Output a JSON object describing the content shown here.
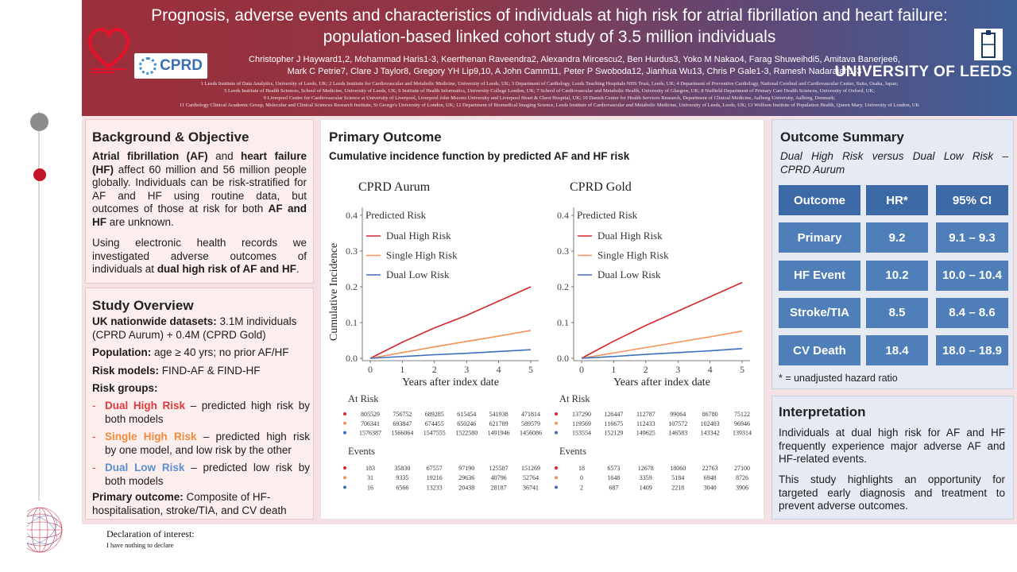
{
  "header": {
    "title_line1": "Prognosis, adverse events and characteristics of individuals at high risk for atrial fibrillation and heart failure:",
    "title_line2": "population-based linked cohort study of 3.5 million individuals",
    "authors_line1": "Christopher J Hayward1,2, Mohammad Haris1-3, Keerthenan Raveendra2, Alexandra Mircescu2, Ben Hurdus3, Yoko M Nakao4, Farag Shuweihdi5, Amitava Banerjee6,",
    "authors_line2": "Mark C Petrie7, Clare J Taylor8, Gregory YH Lip9,10, A John Camm11, Peter P Swoboda12, Jianhua Wu13, Chris P Gale1-3, Ramesh Nadarajah1-3",
    "affiliations": [
      "1 Leeds Institute of Data Analytics, University of Leeds, UK; 2 Leeds Institute for Cardiovascular and Metabolic Medicine, University of Leeds, UK; 3 Department of Cardiology, Leeds Teaching Hospitals NHS Trust, Leeds, UK; 4 Department of Preventive Cardiology, National Cerebral and Cardiovascular Center, Suita, Osaka, Japan;",
      "5 Leeds Institute of Health Sciences, School of Medicine, University of Leeds, UK; 6 Institute of Health Informatics, University College London, UK; 7 School of Cardiovascular and Metabolic Health, University of Glasgow, UK; 8 Nuffield Department of Primary Care Health Sciences, University of Oxford, UK;",
      "9 Liverpool Centre for Cardiovascular Science at University of Liverpool, Liverpool John Moores University and Liverpool Heart & Chest Hospital, UK; 10 Danish Center for Health Services Research, Department of Clinical Medicine, Aalborg University, Aalborg, Denmark;",
      "11 Cardiology Clinical Academic Group, Molecular and Clinical Sciences Research Institute, St George's University of London, UK; 12 Department of Biomedical Imaging Science, Leeds Institute of Cardiovascular and Metabolic Medicine, University of Leeds, Leeds, UK; 13 Wolfson Institute of Population Health, Queen Mary, University of London, UK"
    ],
    "cprd_logo": "CPRD",
    "university": "UNIVERSITY OF LEEDS"
  },
  "background": {
    "title": "Background & Objective",
    "p1_lines": [
      [
        {
          "t": "Atrial fibrillation (AF)",
          "b": true
        },
        {
          "t": " and "
        },
        {
          "t": "heart failure",
          "b": true
        }
      ],
      [
        {
          "t": "(HF)",
          "b": true
        },
        {
          "t": " affect 60 million and 56 million people"
        }
      ],
      [
        {
          "t": "globally. Individuals can be risk-stratified for"
        }
      ],
      [
        {
          "t": "AF and HF using routine data, but"
        }
      ],
      [
        {
          "t": "outcomes of those at risk for both "
        },
        {
          "t": "AF and",
          "b": true
        }
      ],
      [
        {
          "t": "HF",
          "b": true
        },
        {
          "t": " are unknown."
        }
      ]
    ],
    "p2_lines": [
      [
        {
          "t": "Using electronic health records we"
        }
      ],
      [
        {
          "t": "investigated adverse outcomes of"
        }
      ],
      [
        {
          "t": "individuals at "
        },
        {
          "t": "dual high risk of AF and HF",
          "b": true
        },
        {
          "t": "."
        }
      ]
    ]
  },
  "study": {
    "title": "Study Overview",
    "datasets_label": "UK nationwide datasets:",
    "datasets_text": " 3.1M individuals",
    "datasets_text2": "(CPRD Aurum) + 0.4M (CPRD Gold)",
    "population_label": "Population:",
    "population_text": " age ≥ 40 yrs; no prior AF/HF",
    "models_label": "Risk models:",
    "models_text": " FIND-AF & FIND-HF",
    "groups_label": "Risk groups:",
    "groups": [
      {
        "name": "Dual High Risk",
        "text": " – predicted high risk by",
        "text2": "both models",
        "color": "#e03a3e"
      },
      {
        "name": "Single High Risk",
        "text": " – predicted high risk",
        "text2": "by one model, and low risk by the other",
        "color": "#f08a3c"
      },
      {
        "name": "Dual Low Risk",
        "text": " – predicted low risk by",
        "text2": "both models",
        "color": "#5a8fd0"
      }
    ],
    "outcome_label": "Primary outcome:",
    "outcome_text": " Composite of HF-",
    "outcome_text2": "hospitalisation, stroke/TIA, and CV death"
  },
  "primary": {
    "title": "Primary Outcome",
    "subtitle": "Cumulative incidence function by predicted AF and HF risk"
  },
  "chart_data": [
    {
      "type": "line",
      "title": "CPRD Aurum",
      "ylabel": "Cumulative Incidence",
      "xlabel": "Years after index date",
      "xlim": [
        0,
        5
      ],
      "ylim": [
        0,
        0.4
      ],
      "xticks": [
        "0",
        "1",
        "2",
        "3",
        "4",
        "5"
      ],
      "yticks": [
        "0.0",
        "0.1",
        "0.2",
        "0.3",
        "0.4"
      ],
      "legend_title": "Predicted Risk",
      "legend_position": "top-left",
      "series": [
        {
          "name": "Dual High Risk",
          "color": "#d7262b",
          "x": [
            0,
            1,
            2,
            3,
            4,
            5
          ],
          "y": [
            0,
            0.045,
            0.085,
            0.12,
            0.16,
            0.2
          ]
        },
        {
          "name": "Single High Risk",
          "color": "#f2915a",
          "x": [
            0,
            1,
            2,
            3,
            4,
            5
          ],
          "y": [
            0,
            0.016,
            0.032,
            0.047,
            0.062,
            0.078
          ]
        },
        {
          "name": "Dual Low Risk",
          "color": "#3b6fba",
          "x": [
            0,
            1,
            2,
            3,
            4,
            5
          ],
          "y": [
            0,
            0.005,
            0.01,
            0.014,
            0.019,
            0.024
          ]
        }
      ],
      "at_risk_label": "At Risk",
      "at_risk": [
        [
          "805529",
          "756752",
          "689285",
          "615454",
          "541938",
          "471814"
        ],
        [
          "706341",
          "693847",
          "674455",
          "650246",
          "621789",
          "589579"
        ],
        [
          "1576387",
          "1566064",
          "1547555",
          "1522580",
          "1491946",
          "1456086"
        ]
      ],
      "events_label": "Events",
      "events": [
        [
          "183",
          "35830",
          "67557",
          "97190",
          "125587",
          "151269"
        ],
        [
          "31",
          "9335",
          "19216",
          "29636",
          "40796",
          "52764"
        ],
        [
          "16",
          "6566",
          "13233",
          "20438",
          "28187",
          "36741"
        ]
      ]
    },
    {
      "type": "line",
      "title": "CPRD Gold",
      "ylabel": "",
      "xlabel": "Years after index date",
      "xlim": [
        0,
        5
      ],
      "ylim": [
        0,
        0.4
      ],
      "xticks": [
        "0",
        "1",
        "2",
        "3",
        "4",
        "5"
      ],
      "yticks": [
        "0.0",
        "0.1",
        "0.2",
        "0.3",
        "0.4"
      ],
      "legend_title": "Predicted Risk",
      "legend_position": "top-left",
      "series": [
        {
          "name": "Dual High Risk",
          "color": "#d7262b",
          "x": [
            0,
            1,
            2,
            3,
            4,
            5
          ],
          "y": [
            0,
            0.048,
            0.092,
            0.132,
            0.172,
            0.212
          ]
        },
        {
          "name": "Single High Risk",
          "color": "#f2915a",
          "x": [
            0,
            1,
            2,
            3,
            4,
            5
          ],
          "y": [
            0,
            0.015,
            0.03,
            0.045,
            0.06,
            0.076
          ]
        },
        {
          "name": "Dual Low Risk",
          "color": "#3b6fba",
          "x": [
            0,
            1,
            2,
            3,
            4,
            5
          ],
          "y": [
            0,
            0.005,
            0.011,
            0.016,
            0.021,
            0.027
          ]
        }
      ],
      "at_risk_label": "At Risk",
      "at_risk": [
        [
          "137290",
          "126447",
          "112787",
          "99064",
          "86780",
          "75122"
        ],
        [
          "119569",
          "116675",
          "112433",
          "107572",
          "102403",
          "96946"
        ],
        [
          "153554",
          "152129",
          "149625",
          "146583",
          "143342",
          "139314"
        ]
      ],
      "events_label": "Events",
      "events": [
        [
          "18",
          "6573",
          "12678",
          "18060",
          "22763",
          "27100"
        ],
        [
          "0",
          "1648",
          "3359",
          "5184",
          "6948",
          "8726"
        ],
        [
          "2",
          "687",
          "1409",
          "2218",
          "3040",
          "3906"
        ]
      ]
    }
  ],
  "summary": {
    "title": "Outcome Summary",
    "subtitle_line1": "Dual High Risk versus Dual Low Risk –",
    "subtitle_line2": "CPRD Aurum",
    "headers": [
      "Outcome",
      "HR*",
      "95% CI"
    ],
    "rows": [
      [
        "Primary",
        "9.2",
        "9.1 – 9.3"
      ],
      [
        "HF Event",
        "10.2",
        "10.0 – 10.4"
      ],
      [
        "Stroke/TIA",
        "8.5",
        "8.4 – 8.6"
      ],
      [
        "CV Death",
        "18.4",
        "18.0 – 18.9"
      ]
    ],
    "footnote": "* = unadjusted hazard ratio"
  },
  "interpretation": {
    "title": "Interpretation",
    "p1_lines": [
      "Individuals at dual high risk for AF and HF",
      "frequently experience major adverse AF and",
      "HF-related events."
    ],
    "p2_lines": [
      "This study highlights an opportunity for",
      "targeted early diagnosis and treatment to",
      "prevent adverse outcomes."
    ]
  },
  "declaration": {
    "title": "Declaration of interest:",
    "text": "I have nothing to declare"
  },
  "colors": {
    "dual_high": "#d7262b",
    "single_high": "#f2915a",
    "dual_low": "#3b6fba",
    "table_cell": "#4f7fb8"
  }
}
